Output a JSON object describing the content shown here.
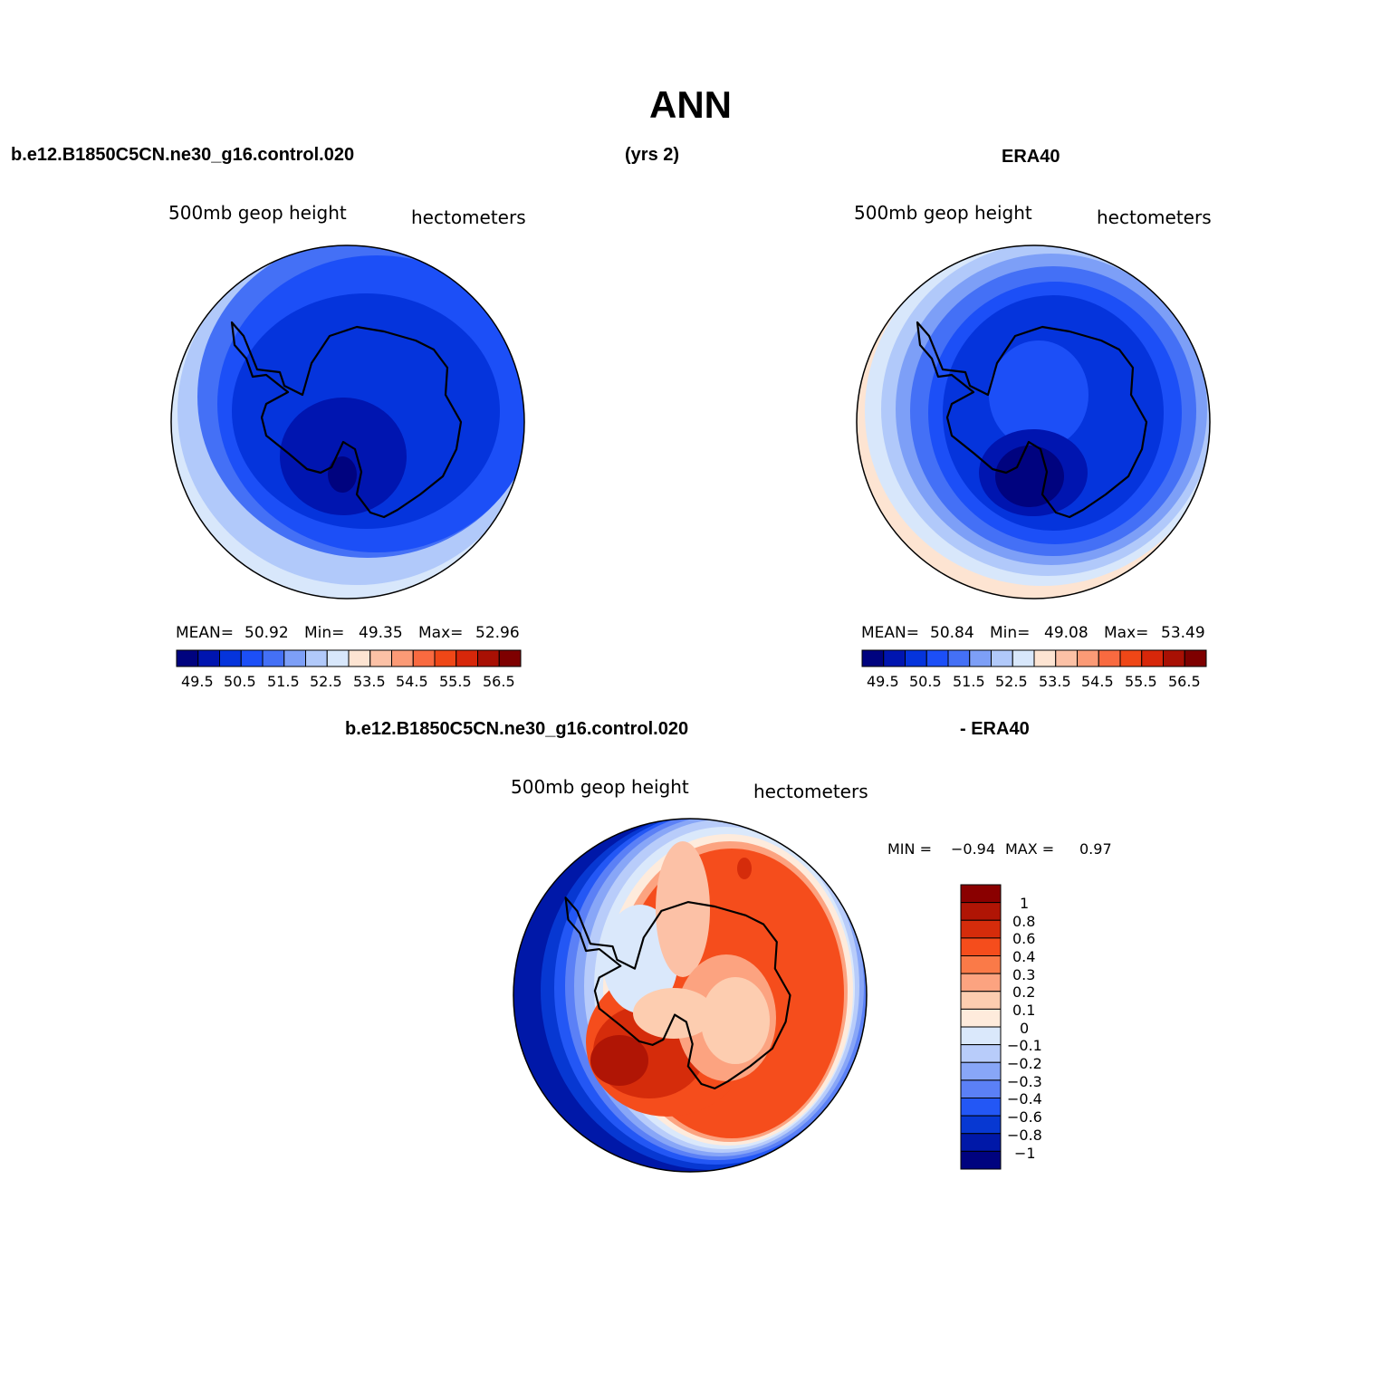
{
  "title": "ANN",
  "header": {
    "case_name": "b.e12.B1850C5CN.ne30_g16.control.020",
    "years": "(yrs 2)",
    "obs_name": "ERA40"
  },
  "panels": [
    {
      "variable": "500mb  geop  height",
      "units": "hectometers",
      "stats": {
        "mean_label": "MEAN=",
        "mean": "50.92",
        "min_label": "Min=",
        "min": "49.35",
        "max_label": "Max=",
        "max": "52.96"
      },
      "colorbar_labels": [
        "49.5",
        "50.5",
        "51.5",
        "52.5",
        "53.5",
        "54.5",
        "55.5",
        "56.5"
      ]
    },
    {
      "variable": "500mb  geop  height",
      "units": "hectometers",
      "stats": {
        "mean_label": "MEAN=",
        "mean": "50.84",
        "min_label": "Min=",
        "min": "49.08",
        "max_label": "Max=",
        "max": "53.49"
      },
      "colorbar_labels": [
        "49.5",
        "50.5",
        "51.5",
        "52.5",
        "53.5",
        "54.5",
        "55.5",
        "56.5"
      ]
    }
  ],
  "difference": {
    "left_title": "b.e12.B1850C5CN.ne30_g16.control.020",
    "right_title": "- ERA40",
    "variable": "500mb  geop  height",
    "units": "hectometers",
    "minmax": {
      "min_label": "MIN =",
      "min": "−0.94",
      "max_label": "MAX =",
      "max": "0.97"
    },
    "colorbar_labels": [
      "1",
      "0.8",
      "0.6",
      "0.4",
      "0.3",
      "0.2",
      "0.1",
      "0",
      "−0.1",
      "−0.2",
      "−0.3",
      "−0.4",
      "−0.6",
      "−0.8",
      "−1"
    ]
  },
  "colors": {
    "field_scale": [
      "#00037f",
      "#0015b0",
      "#0534dc",
      "#1c4ff7",
      "#4470f6",
      "#7d9ff7",
      "#b1c9fa",
      "#d8e7fb",
      "#fde4d2",
      "#fcc1a6",
      "#fb9a76",
      "#f96a40",
      "#ef4717",
      "#d7270a",
      "#a81004",
      "#7e0000"
    ],
    "diff_scale": [
      "#8a0000",
      "#b01505",
      "#d52c0b",
      "#f54d1c",
      "#fa7a48",
      "#fca380",
      "#fdcdb0",
      "#feebdc",
      "#dae8fb",
      "#b8ccfa",
      "#88a6f7",
      "#5b80f6",
      "#2357f5",
      "#0738d2",
      "#0018a8",
      "#00037f"
    ]
  }
}
